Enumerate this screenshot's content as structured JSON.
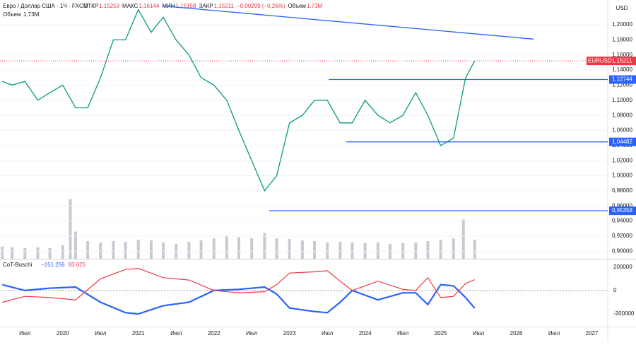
{
  "header": {
    "symbol": "Евро / Доллар США · 1Ч · FXCM",
    "open_label": "ОТКР",
    "open": "1,15253",
    "high_label": "МАКС",
    "high": "1,16144",
    "low_label": "МИН",
    "low": "1,15158",
    "close_label": "ЗАКР",
    "close": "1,15211",
    "change": "−0,00299 (−0,26%)",
    "volume_label": "Объем",
    "volume": "1,73M",
    "volume_row_label": "Объем",
    "volume_row": "1,73M",
    "currency": "USD"
  },
  "chart_data": [
    {
      "type": "line",
      "color": "#089981",
      "x": [
        2019.2,
        2019.33,
        2019.5,
        2019.67,
        2019.83,
        2020.0,
        2020.17,
        2020.33,
        2020.5,
        2020.67,
        2020.83,
        2021.0,
        2021.17,
        2021.33,
        2021.5,
        2021.67,
        2021.83,
        2022.0,
        2022.17,
        2022.33,
        2022.5,
        2022.67,
        2022.83,
        2023.0,
        2023.17,
        2023.33,
        2023.5,
        2023.67,
        2023.83,
        2024.0,
        2024.17,
        2024.33,
        2024.5,
        2024.67,
        2024.83,
        2025.0,
        2025.17,
        2025.33,
        2025.45
      ],
      "values": [
        1.125,
        1.12,
        1.125,
        1.1,
        1.11,
        1.12,
        1.09,
        1.09,
        1.13,
        1.18,
        1.18,
        1.22,
        1.19,
        1.21,
        1.18,
        1.16,
        1.13,
        1.12,
        1.1,
        1.06,
        1.02,
        0.98,
        1.0,
        1.07,
        1.08,
        1.1,
        1.1,
        1.07,
        1.07,
        1.1,
        1.08,
        1.07,
        1.08,
        1.11,
        1.08,
        1.04,
        1.05,
        1.13,
        1.15211
      ],
      "xlim": [
        2019.17,
        2027.21
      ],
      "xticks": [
        {
          "value": 2019.5,
          "label": "Июл"
        },
        {
          "value": 2020.0,
          "label": "2020"
        },
        {
          "value": 2020.5,
          "label": "Июл"
        },
        {
          "value": 2021.0,
          "label": "2021"
        },
        {
          "value": 2021.5,
          "label": "Июл"
        },
        {
          "value": 2022.0,
          "label": "2022"
        },
        {
          "value": 2022.5,
          "label": "Июл"
        },
        {
          "value": 2023.0,
          "label": "2023"
        },
        {
          "value": 2023.5,
          "label": "Июл"
        },
        {
          "value": 2024.0,
          "label": "2024"
        },
        {
          "value": 2024.5,
          "label": "Июл"
        },
        {
          "value": 2025.0,
          "label": "2025"
        },
        {
          "value": 2025.5,
          "label": "Июл"
        },
        {
          "value": 2026.0,
          "label": "2026"
        },
        {
          "value": 2026.5,
          "label": "Июл"
        },
        {
          "value": 2027.0,
          "label": "2027"
        }
      ],
      "ylim": [
        0.89,
        1.23
      ],
      "yticks": [
        {
          "value": 1.2,
          "label": "1,20000"
        },
        {
          "value": 1.18,
          "label": "1,18000"
        },
        {
          "value": 1.16,
          "label": "1,16000"
        },
        {
          "value": 1.14,
          "label": "1,14000"
        },
        {
          "value": 1.12,
          "label": "1,12000"
        },
        {
          "value": 1.1,
          "label": "1,10000"
        },
        {
          "value": 1.08,
          "label": "1,08000"
        },
        {
          "value": 1.06,
          "label": "1,06000"
        },
        {
          "value": 1.04,
          "label": "1,04000"
        },
        {
          "value": 1.02,
          "label": "1,02000"
        },
        {
          "value": 1.0,
          "label": "1,00000"
        },
        {
          "value": 0.98,
          "label": "0,98000"
        },
        {
          "value": 0.96,
          "label": "0,96000"
        },
        {
          "value": 0.94,
          "label": "0,94000"
        },
        {
          "value": 0.92,
          "label": "0,92000"
        },
        {
          "value": 0.9,
          "label": "0,90000"
        }
      ],
      "levels": [
        {
          "value": 1.12744,
          "label": "1,12744",
          "start": 2023.52
        },
        {
          "value": 1.04482,
          "label": "1,04482",
          "start": 2023.75
        },
        {
          "value": 0.95358,
          "label": "0,95358",
          "start": 2022.73
        }
      ],
      "level_color": "#2962ff",
      "trendline": {
        "x": [
          2021.32,
          2026.23
        ],
        "y": [
          1.225,
          1.181
        ]
      },
      "last_price": {
        "name": "EURUSD",
        "value": 1.15211,
        "value_label": "1,15211",
        "color": "#f23645"
      }
    },
    {
      "type": "bar",
      "color": "#c8cad1",
      "x": [
        2019.2,
        2019.33,
        2019.5,
        2019.67,
        2019.83,
        2020.0,
        2020.1,
        2020.17,
        2020.33,
        2020.5,
        2020.67,
        2020.83,
        2021.0,
        2021.17,
        2021.33,
        2021.5,
        2021.67,
        2021.83,
        2022.0,
        2022.17,
        2022.33,
        2022.5,
        2022.67,
        2022.83,
        2023.0,
        2023.17,
        2023.33,
        2023.5,
        2023.67,
        2023.83,
        2024.0,
        2024.17,
        2024.33,
        2024.5,
        2024.67,
        2024.83,
        2025.0,
        2025.17,
        2025.3,
        2025.45
      ],
      "values": [
        18,
        17,
        16,
        17,
        16,
        20,
        88,
        40,
        26,
        24,
        26,
        25,
        28,
        27,
        24,
        22,
        25,
        27,
        30,
        34,
        32,
        30,
        38,
        30,
        29,
        27,
        26,
        24,
        25,
        24,
        23,
        24,
        22,
        23,
        24,
        26,
        28,
        30,
        58,
        28
      ],
      "ylim": [
        0,
        100
      ]
    },
    {
      "type": "line",
      "title": "CoT-Buschi",
      "x": [
        2019.2,
        2019.5,
        2019.83,
        2020.17,
        2020.5,
        2020.83,
        2021.0,
        2021.33,
        2021.67,
        2022.0,
        2022.33,
        2022.67,
        2022.83,
        2023.0,
        2023.33,
        2023.5,
        2023.67,
        2023.83,
        2024.17,
        2024.5,
        2024.67,
        2024.83,
        2025.0,
        2025.17,
        2025.33,
        2025.45
      ],
      "series": [
        {
          "color": "#2962ff",
          "values": [
            50000,
            0,
            20000,
            30000,
            -100000,
            -190000,
            -200000,
            -130000,
            -100000,
            0,
            10000,
            30000,
            -30000,
            -150000,
            -180000,
            -190000,
            -100000,
            0,
            -80000,
            -20000,
            -20000,
            -120000,
            50000,
            40000,
            -60000,
            -151256
          ],
          "value_label": "−151 256"
        },
        {
          "color": "#f23645",
          "values": [
            -100000,
            -50000,
            -60000,
            -80000,
            100000,
            180000,
            190000,
            110000,
            90000,
            0,
            -20000,
            -10000,
            50000,
            150000,
            160000,
            170000,
            80000,
            0,
            80000,
            10000,
            0,
            110000,
            -60000,
            -50000,
            60000,
            93025
          ],
          "value_label": "93 025"
        }
      ],
      "ylim": [
        -297000,
        260000
      ],
      "yticks": [
        200000,
        0,
        -200000
      ]
    }
  ]
}
